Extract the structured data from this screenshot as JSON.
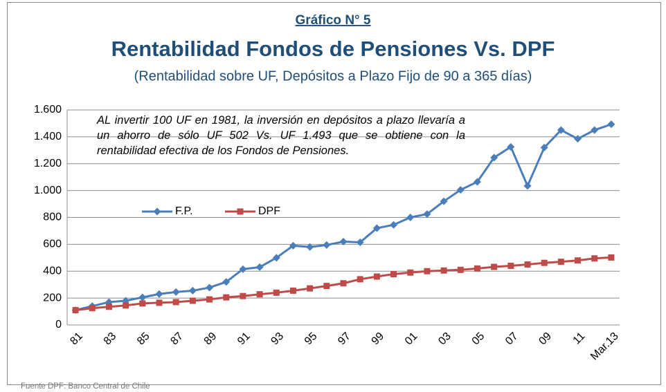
{
  "chart_data": {
    "type": "line",
    "kicker": "Gráfico N° 5",
    "title": "Rentabilidad Fondos de Pensiones Vs. DPF",
    "subtitle": "(Rentabilidad sobre UF, Depósitos a Plazo Fijo de 90 a 365 días)",
    "annotation": "AL invertir 100 UF en 1981, la inversión en depósitos a plazo llevaría a un ahorro de sólo UF 502 Vs. UF 1.493 que se obtiene con la rentabilidad efectiva de los Fondos de Pensiones.",
    "source": "Fuente DPF: Banco Central de Chile",
    "categories": [
      "81",
      null,
      "83",
      null,
      "85",
      null,
      "87",
      null,
      "89",
      null,
      "91",
      null,
      "93",
      null,
      "95",
      null,
      "97",
      null,
      "99",
      null,
      "01",
      null,
      "03",
      null,
      "05",
      null,
      "07",
      null,
      "09",
      null,
      "11",
      null,
      "Mar.13"
    ],
    "series": [
      {
        "name": "F.P.",
        "color": "#4a7ebb",
        "marker": "diamond",
        "values": [
          110,
          140,
          170,
          180,
          205,
          230,
          245,
          255,
          278,
          320,
          415,
          430,
          500,
          590,
          580,
          595,
          620,
          615,
          720,
          745,
          800,
          825,
          920,
          1005,
          1065,
          1245,
          1325,
          1035,
          1320,
          1450,
          1385,
          1450,
          1493
        ]
      },
      {
        "name": "DPF",
        "color": "#be4b48",
        "marker": "square",
        "values": [
          110,
          125,
          135,
          145,
          160,
          165,
          170,
          180,
          190,
          205,
          215,
          228,
          240,
          255,
          272,
          290,
          310,
          340,
          360,
          378,
          390,
          400,
          405,
          410,
          420,
          432,
          440,
          450,
          462,
          470,
          480,
          495,
          502
        ]
      }
    ],
    "ylim": [
      0,
      1600
    ],
    "yticks": [
      0,
      200,
      400,
      600,
      800,
      {
        "value": 1000,
        "label": "1.000"
      },
      {
        "value": 1200,
        "label": "1.200"
      },
      {
        "value": 1400,
        "label": "1.400"
      },
      {
        "value": 1600,
        "label": "1.600"
      }
    ],
    "grid": true
  }
}
